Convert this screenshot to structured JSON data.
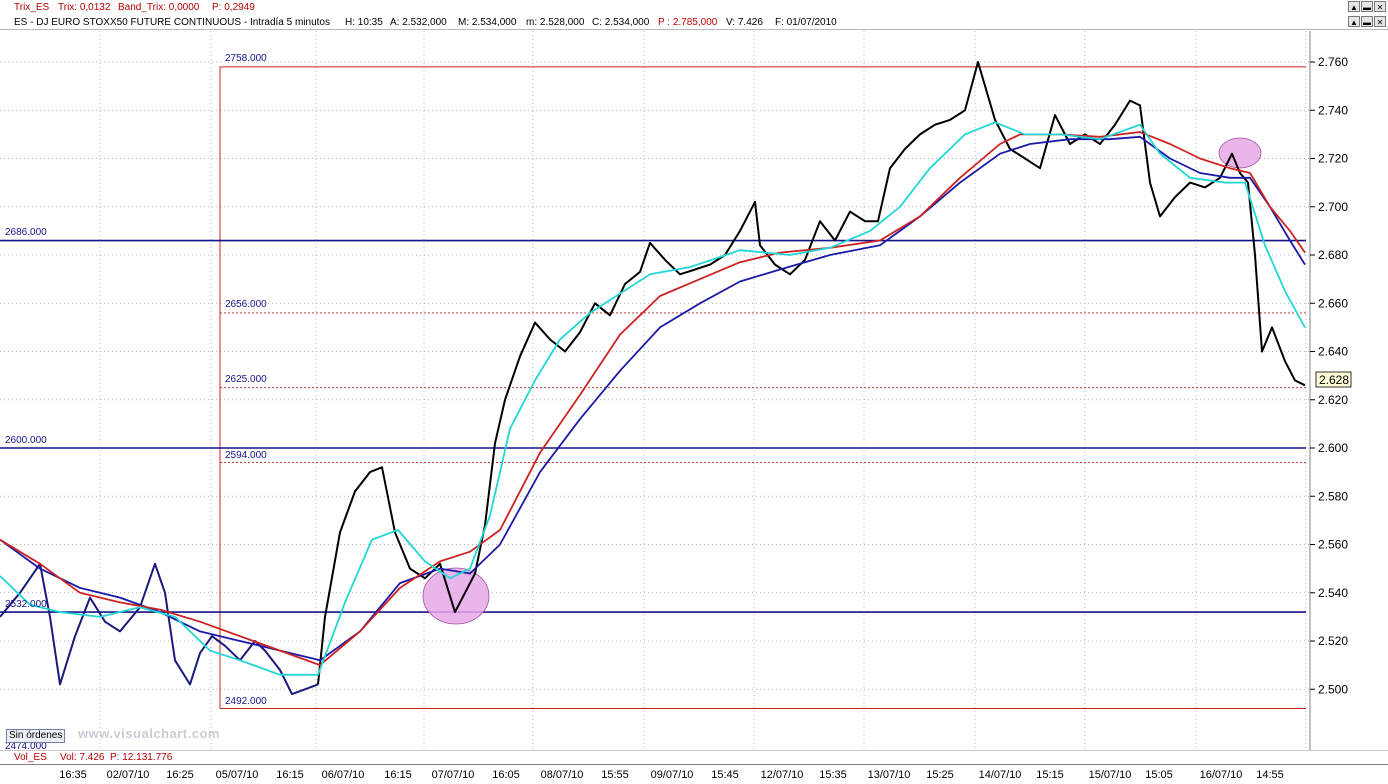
{
  "top_bar": {
    "indicator": "Trix_ES",
    "trix": "Trix: 0,0132",
    "band": "Band_Trix: 0,0000",
    "p": "P: 0,2949"
  },
  "info_bar": {
    "symbol": "ES - DJ EURO STOXX50 FUTURE CONTINUOUS - Intradía 5 minutos",
    "h": "H: 10:35",
    "a": "A: 2.532,000",
    "m": "M: 2.534,000",
    "mn": "m: 2.528,000",
    "c": "C: 2.534,000",
    "p": "P : 2.785,000",
    "v": "V: 7.426",
    "f": "F: 01/07/2010"
  },
  "vol_bar": {
    "name": "Vol_ES",
    "vol": "Vol: 7.426",
    "p": "P: 12.131.776"
  },
  "buttons": {
    "orders": "Sin órdenes"
  },
  "watermark": "www.visualchart.com",
  "levels": {
    "h2758": "2758.000",
    "h2686": "2686.000",
    "h2656": "2656.000",
    "h2625": "2625.000",
    "h2600": "2600.000",
    "h2594": "2594.000",
    "h2532": "2532.000",
    "h2492": "2492.000",
    "h2474": "2474.000"
  },
  "last_price": "2.628",
  "colors": {
    "price": "#000000",
    "price_early": "#1a1a7a",
    "ma_cyan": "#22d6d6",
    "ma_red": "#cc2222",
    "ma_blue": "#1a1aa8",
    "hline": "#14148a",
    "dashed": "#b02020",
    "highlight": "#e6a8e6"
  },
  "chart_data": {
    "type": "line",
    "title": "ES - DJ EURO STOXX50 FUTURE CONTINUOUS - Intradía 5 minutos",
    "y_ticks": [
      "2.760",
      "2.740",
      "2.720",
      "2.700",
      "2.680",
      "2.660",
      "2.640",
      "2.620",
      "2.600",
      "2.580",
      "2.560",
      "2.540",
      "2.520",
      "2.500"
    ],
    "ylim": [
      2487,
      2763
    ],
    "x_labels": [
      "16:35",
      "02/07/10",
      "16:25",
      "05/07/10",
      "16:15",
      "06/07/10",
      "16:15",
      "07/07/10",
      "16:05",
      "08/07/10",
      "15:55",
      "09/07/10",
      "15:45",
      "12/07/10",
      "15:35",
      "13/07/10",
      "15:25",
      "14/07/10",
      "15:15",
      "15/07/10",
      "15:05",
      "16/07/10",
      "14:55"
    ],
    "price": [
      [
        0,
        2530
      ],
      [
        20,
        2540
      ],
      [
        40,
        2552
      ],
      [
        50,
        2530
      ],
      [
        60,
        2502
      ],
      [
        75,
        2522
      ],
      [
        90,
        2538
      ],
      [
        105,
        2528
      ],
      [
        120,
        2524
      ],
      [
        140,
        2534
      ],
      [
        155,
        2552
      ],
      [
        165,
        2540
      ],
      [
        175,
        2512
      ],
      [
        190,
        2502
      ],
      [
        200,
        2515
      ],
      [
        212,
        2522
      ],
      [
        225,
        2518
      ],
      [
        240,
        2512
      ],
      [
        255,
        2520
      ],
      [
        265,
        2516
      ],
      [
        280,
        2508
      ],
      [
        292,
        2498
      ],
      [
        305,
        2500
      ],
      [
        318,
        2502
      ],
      [
        325,
        2530
      ],
      [
        340,
        2565
      ],
      [
        355,
        2582
      ],
      [
        370,
        2590
      ],
      [
        382,
        2592
      ],
      [
        395,
        2565
      ],
      [
        410,
        2550
      ],
      [
        425,
        2546
      ],
      [
        440,
        2552
      ],
      [
        455,
        2532
      ],
      [
        465,
        2540
      ],
      [
        475,
        2548
      ],
      [
        485,
        2568
      ],
      [
        495,
        2602
      ],
      [
        505,
        2620
      ],
      [
        520,
        2638
      ],
      [
        535,
        2652
      ],
      [
        550,
        2645
      ],
      [
        565,
        2640
      ],
      [
        580,
        2648
      ],
      [
        595,
        2660
      ],
      [
        610,
        2655
      ],
      [
        625,
        2668
      ],
      [
        640,
        2673
      ],
      [
        650,
        2685
      ],
      [
        665,
        2678
      ],
      [
        680,
        2672
      ],
      [
        695,
        2674
      ],
      [
        710,
        2676
      ],
      [
        725,
        2680
      ],
      [
        740,
        2690
      ],
      [
        755,
        2702
      ],
      [
        760,
        2684
      ],
      [
        775,
        2676
      ],
      [
        790,
        2672
      ],
      [
        805,
        2678
      ],
      [
        820,
        2694
      ],
      [
        835,
        2686
      ],
      [
        850,
        2698
      ],
      [
        865,
        2694
      ],
      [
        878,
        2694
      ],
      [
        890,
        2716
      ],
      [
        905,
        2724
      ],
      [
        920,
        2730
      ],
      [
        935,
        2734
      ],
      [
        950,
        2736
      ],
      [
        965,
        2740
      ],
      [
        978,
        2760
      ],
      [
        995,
        2736
      ],
      [
        1010,
        2724
      ],
      [
        1025,
        2720
      ],
      [
        1040,
        2716
      ],
      [
        1055,
        2738
      ],
      [
        1070,
        2726
      ],
      [
        1085,
        2730
      ],
      [
        1100,
        2726
      ],
      [
        1115,
        2734
      ],
      [
        1130,
        2744
      ],
      [
        1140,
        2742
      ],
      [
        1150,
        2710
      ],
      [
        1160,
        2696
      ],
      [
        1175,
        2704
      ],
      [
        1190,
        2710
      ],
      [
        1205,
        2708
      ],
      [
        1220,
        2712
      ],
      [
        1232,
        2722
      ],
      [
        1240,
        2714
      ],
      [
        1248,
        2710
      ],
      [
        1255,
        2680
      ],
      [
        1262,
        2640
      ],
      [
        1272,
        2650
      ],
      [
        1285,
        2636
      ],
      [
        1295,
        2628
      ],
      [
        1305,
        2626
      ]
    ],
    "ma_cyan": [
      [
        0,
        2547
      ],
      [
        30,
        2535
      ],
      [
        60,
        2532
      ],
      [
        100,
        2530
      ],
      [
        140,
        2534
      ],
      [
        175,
        2530
      ],
      [
        210,
        2516
      ],
      [
        240,
        2512
      ],
      [
        280,
        2506
      ],
      [
        318,
        2506
      ],
      [
        345,
        2536
      ],
      [
        372,
        2562
      ],
      [
        398,
        2566
      ],
      [
        425,
        2553
      ],
      [
        450,
        2546
      ],
      [
        470,
        2550
      ],
      [
        490,
        2572
      ],
      [
        510,
        2608
      ],
      [
        535,
        2628
      ],
      [
        560,
        2645
      ],
      [
        590,
        2656
      ],
      [
        620,
        2664
      ],
      [
        650,
        2672
      ],
      [
        690,
        2675
      ],
      [
        740,
        2682
      ],
      [
        790,
        2680
      ],
      [
        830,
        2683
      ],
      [
        870,
        2690
      ],
      [
        900,
        2700
      ],
      [
        930,
        2716
      ],
      [
        965,
        2730
      ],
      [
        995,
        2735
      ],
      [
        1025,
        2730
      ],
      [
        1060,
        2730
      ],
      [
        1100,
        2728
      ],
      [
        1140,
        2734
      ],
      [
        1160,
        2722
      ],
      [
        1190,
        2712
      ],
      [
        1225,
        2710
      ],
      [
        1245,
        2710
      ],
      [
        1265,
        2684
      ],
      [
        1285,
        2665
      ],
      [
        1305,
        2650
      ]
    ],
    "ma_red": [
      [
        0,
        2562
      ],
      [
        40,
        2552
      ],
      [
        80,
        2540
      ],
      [
        120,
        2536
      ],
      [
        160,
        2533
      ],
      [
        200,
        2528
      ],
      [
        240,
        2522
      ],
      [
        280,
        2516
      ],
      [
        320,
        2510
      ],
      [
        360,
        2524
      ],
      [
        400,
        2542
      ],
      [
        440,
        2553
      ],
      [
        470,
        2557
      ],
      [
        500,
        2566
      ],
      [
        540,
        2598
      ],
      [
        580,
        2622
      ],
      [
        620,
        2647
      ],
      [
        660,
        2663
      ],
      [
        700,
        2670
      ],
      [
        740,
        2677
      ],
      [
        780,
        2681
      ],
      [
        830,
        2683
      ],
      [
        880,
        2686
      ],
      [
        920,
        2696
      ],
      [
        960,
        2712
      ],
      [
        1000,
        2726
      ],
      [
        1020,
        2730
      ],
      [
        1060,
        2730
      ],
      [
        1100,
        2729
      ],
      [
        1140,
        2731
      ],
      [
        1170,
        2726
      ],
      [
        1200,
        2720
      ],
      [
        1230,
        2716
      ],
      [
        1250,
        2714
      ],
      [
        1270,
        2700
      ],
      [
        1290,
        2690
      ],
      [
        1305,
        2681
      ]
    ],
    "ma_blue": [
      [
        0,
        2562
      ],
      [
        40,
        2550
      ],
      [
        80,
        2542
      ],
      [
        120,
        2538
      ],
      [
        160,
        2532
      ],
      [
        200,
        2524
      ],
      [
        240,
        2520
      ],
      [
        280,
        2516
      ],
      [
        320,
        2512
      ],
      [
        360,
        2524
      ],
      [
        400,
        2544
      ],
      [
        440,
        2550
      ],
      [
        470,
        2548
      ],
      [
        500,
        2560
      ],
      [
        540,
        2590
      ],
      [
        580,
        2612
      ],
      [
        620,
        2632
      ],
      [
        660,
        2650
      ],
      [
        700,
        2660
      ],
      [
        740,
        2669
      ],
      [
        780,
        2674
      ],
      [
        830,
        2680
      ],
      [
        880,
        2684
      ],
      [
        920,
        2696
      ],
      [
        960,
        2710
      ],
      [
        1000,
        2722
      ],
      [
        1030,
        2726
      ],
      [
        1070,
        2728
      ],
      [
        1110,
        2728
      ],
      [
        1140,
        2729
      ],
      [
        1170,
        2720
      ],
      [
        1200,
        2714
      ],
      [
        1230,
        2712
      ],
      [
        1250,
        2712
      ],
      [
        1270,
        2700
      ],
      [
        1290,
        2686
      ],
      [
        1305,
        2676
      ]
    ]
  }
}
